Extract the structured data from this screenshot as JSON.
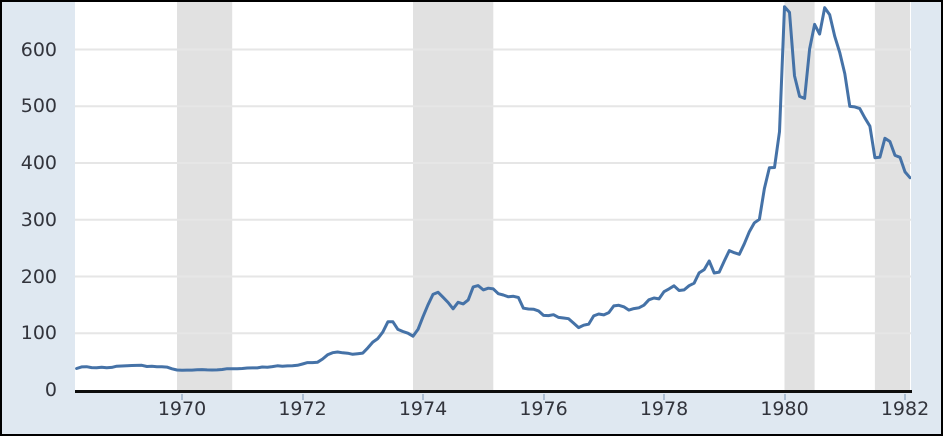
{
  "chart_data": {
    "type": "line",
    "title": "",
    "xlabel": "",
    "ylabel": "",
    "legend": "none",
    "grid": "horizontal",
    "x_start": {
      "year": 1968,
      "month": 4
    },
    "x_end": {
      "year": 1982,
      "month": 2
    },
    "x_ticks": [
      1970,
      1972,
      1974,
      1976,
      1978,
      1980,
      1982
    ],
    "y_ticks": [
      0,
      100,
      200,
      300,
      400,
      500,
      600
    ],
    "xlim": [
      1968.25,
      1982.0833
    ],
    "ylim": [
      0,
      684
    ],
    "shaded_x_bands": [
      [
        1969.9167,
        1970.8333
      ],
      [
        1973.8333,
        1975.1667
      ],
      [
        1980.0,
        1980.5
      ],
      [
        1981.5,
        1982.0833
      ]
    ],
    "values": [
      37.9,
      40.7,
      41.1,
      39.5,
      39.2,
      40.2,
      39.2,
      39.8,
      41.9,
      42.3,
      42.6,
      43.2,
      43.3,
      43.5,
      41.4,
      41.8,
      41.1,
      40.9,
      40.4,
      37.4,
      35.2,
      34.9,
      35.0,
      35.1,
      35.6,
      36.0,
      35.4,
      35.3,
      35.4,
      36.2,
      37.5,
      37.4,
      37.4,
      37.9,
      38.7,
      38.9,
      39.0,
      40.5,
      40.1,
      41.2,
      42.7,
      42.0,
      42.5,
      42.9,
      43.5,
      45.8,
      48.3,
      48.3,
      49.0,
      54.6,
      62.1,
      65.7,
      67.0,
      65.5,
      64.9,
      62.9,
      63.9,
      65.1,
      74.2,
      84.4,
      90.5,
      102.0,
      120.1,
      120.2,
      106.8,
      103.0,
      100.1,
      94.8,
      106.7,
      129.2,
      150.2,
      168.4,
      172.2,
      163.3,
      154.1,
      143.0,
      154.6,
      151.8,
      158.8,
      181.7,
      183.9,
      176.3,
      179.3,
      178.2,
      169.7,
      167.4,
      164.3,
      165.1,
      163.0,
      144.1,
      142.8,
      142.4,
      139.3,
      131.5,
      131.1,
      132.6,
      127.9,
      126.9,
      125.7,
      117.8,
      109.9,
      114.2,
      116.1,
      130.5,
      133.9,
      132.3,
      136.3,
      148.2,
      149.2,
      146.6,
      140.8,
      143.4,
      144.9,
      149.4,
      158.9,
      162.1,
      160.5,
      173.2,
      178.2,
      183.7,
      175.3,
      176.3,
      183.8,
      188.2,
      206.3,
      212.1,
      227.4,
      206.1,
      207.8,
      227.3,
      245.7,
      242.0,
      239.2,
      257.6,
      279.1,
      294.7,
      300.8,
      355.1,
      391.7,
      392.0,
      455.1,
      675.3,
      665.3,
      553.6,
      517.4,
      513.8,
      600.7,
      644.3,
      627.1,
      673.6,
      661.1,
      623.5,
      594.9,
      557.4,
      499.8,
      498.8,
      495.8,
      479.7,
      464.8,
      409.3,
      410.2,
      443.6,
      437.8,
      413.4,
      410.1,
      384.4,
      374.1
    ],
    "colors": {
      "line": "#4572a7",
      "band": "#e1e1e1",
      "grid": "#e6e6e6",
      "plot_background": "#ffffff",
      "margin_background": "#dfe8f1",
      "axis_line": "#0d0d0d",
      "tick_mark": "#abbed2",
      "tick_label": "#32343c",
      "border": "#000000"
    }
  }
}
